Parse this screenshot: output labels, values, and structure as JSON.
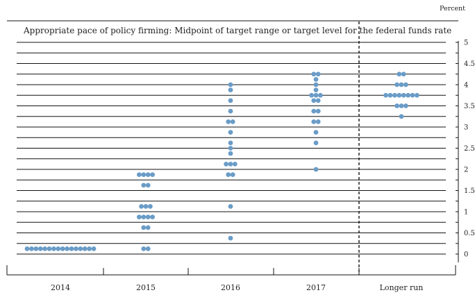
{
  "chart_data": {
    "type": "scatter",
    "title": "Appropriate pace of policy firming: Midpoint of target range or target level for the federal funds rate",
    "unit_label": "Percent",
    "categories": [
      "2014",
      "2015",
      "2016",
      "2017",
      "Longer run"
    ],
    "y_ticks": [
      "0",
      "0.5",
      "1",
      "1.5",
      "2",
      "2.5",
      "3",
      "3.5",
      "4",
      "4.5",
      "5"
    ],
    "ylim": [
      0,
      5
    ],
    "gridline_step": 0.25,
    "dot_color": "#6a9cc7",
    "divider_before_category": "Longer run",
    "series": [
      {
        "category": "2014",
        "dots": [
          {
            "y": 0.125,
            "count": 16
          }
        ]
      },
      {
        "category": "2015",
        "dots": [
          {
            "y": 0.125,
            "count": 2
          },
          {
            "y": 0.625,
            "count": 2
          },
          {
            "y": 0.875,
            "count": 4
          },
          {
            "y": 1.125,
            "count": 3
          },
          {
            "y": 1.625,
            "count": 2
          },
          {
            "y": 1.875,
            "count": 4
          }
        ]
      },
      {
        "category": "2016",
        "dots": [
          {
            "y": 0.375,
            "count": 1
          },
          {
            "y": 1.125,
            "count": 1
          },
          {
            "y": 1.875,
            "count": 2
          },
          {
            "y": 2.125,
            "count": 3
          },
          {
            "y": 2.375,
            "count": 1
          },
          {
            "y": 2.5,
            "count": 1
          },
          {
            "y": 2.625,
            "count": 1
          },
          {
            "y": 2.875,
            "count": 1
          },
          {
            "y": 3.125,
            "count": 2
          },
          {
            "y": 3.375,
            "count": 1
          },
          {
            "y": 3.625,
            "count": 1
          },
          {
            "y": 3.875,
            "count": 1
          },
          {
            "y": 4.0,
            "count": 1
          }
        ]
      },
      {
        "category": "2017",
        "dots": [
          {
            "y": 2.0,
            "count": 1
          },
          {
            "y": 2.625,
            "count": 1
          },
          {
            "y": 2.875,
            "count": 1
          },
          {
            "y": 3.125,
            "count": 2
          },
          {
            "y": 3.375,
            "count": 2
          },
          {
            "y": 3.625,
            "count": 2
          },
          {
            "y": 3.75,
            "count": 3
          },
          {
            "y": 3.875,
            "count": 1
          },
          {
            "y": 4.0,
            "count": 1
          },
          {
            "y": 4.125,
            "count": 1
          },
          {
            "y": 4.25,
            "count": 2
          }
        ]
      },
      {
        "category": "Longer run",
        "dots": [
          {
            "y": 3.25,
            "count": 1
          },
          {
            "y": 3.5,
            "count": 3
          },
          {
            "y": 3.75,
            "count": 8
          },
          {
            "y": 4.0,
            "count": 3
          },
          {
            "y": 4.25,
            "count": 2
          }
        ]
      }
    ]
  }
}
